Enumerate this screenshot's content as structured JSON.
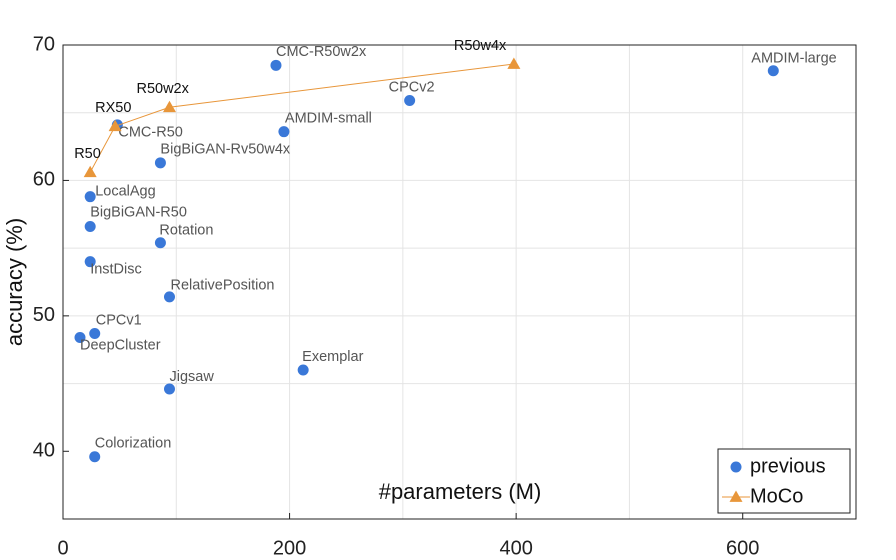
{
  "chart_data": {
    "type": "scatter",
    "x_label": "#parameters (M)",
    "y_label": "accuracy (%)",
    "xlim": [
      0,
      700
    ],
    "ylim": [
      35,
      70
    ],
    "xticks": [
      0,
      200,
      400,
      600
    ],
    "yticks": [
      40,
      50,
      60,
      70
    ],
    "xgrid": [
      100,
      200,
      300,
      400,
      500,
      600
    ],
    "ygrid": [
      45,
      50,
      55,
      60,
      65
    ],
    "grid": true,
    "legend": "lower right",
    "series": [
      {
        "name": "previous",
        "type": "scatter",
        "color": "#3a78d8",
        "point_labels": [
          "CMC-R50w2x",
          "AMDIM-large",
          "CPCv2",
          "AMDIM-small",
          "CMC-R50",
          "BigBiGAN-Rv50w4x",
          "LocalAgg",
          "BigBiGAN-R50",
          "Rotation",
          "InstDisc",
          "RelativePosition",
          "CPCv1",
          "DeepCluster",
          "Exemplar",
          "Jigsaw",
          "Colorization"
        ],
        "x": [
          188,
          627,
          306,
          195,
          48,
          86,
          24,
          24,
          86,
          24,
          94,
          28,
          15,
          212,
          94,
          28
        ],
        "values": [
          68.5,
          68.1,
          65.9,
          63.6,
          64.1,
          61.3,
          58.8,
          56.6,
          55.4,
          54.0,
          51.4,
          48.7,
          48.4,
          46.0,
          44.6,
          39.6
        ]
      },
      {
        "name": "MoCo",
        "type": "line",
        "color": "#e8963a",
        "point_labels": [
          "R50",
          "RX50",
          "R50w2x",
          "R50w4x"
        ],
        "x": [
          24,
          46,
          94,
          398
        ],
        "values": [
          60.6,
          64.0,
          65.4,
          68.6
        ]
      }
    ]
  }
}
